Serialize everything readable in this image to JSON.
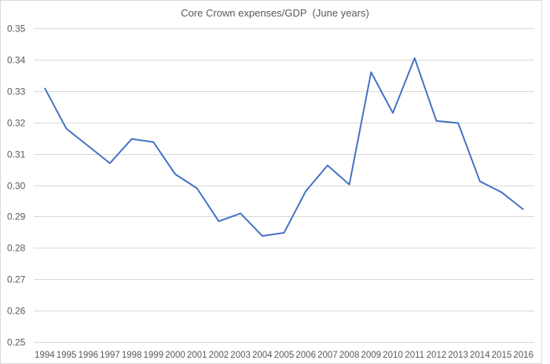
{
  "chart_data": {
    "type": "line",
    "title": "Core Crown expenses/GDP  (June years)",
    "xlabel": "",
    "ylabel": "",
    "ylim": [
      0.25,
      0.35
    ],
    "yticks": [
      "0.35",
      "0.34",
      "0.33",
      "0.32",
      "0.31",
      "0.30",
      "0.29",
      "0.28",
      "0.27",
      "0.26",
      "0.25"
    ],
    "grid": true,
    "legend": "none",
    "categories": [
      "1994",
      "1995",
      "1996",
      "1997",
      "1998",
      "1999",
      "2000",
      "2001",
      "2002",
      "2003",
      "2004",
      "2005",
      "2006",
      "2007",
      "2008",
      "2009",
      "2010",
      "2011",
      "2012",
      "2013",
      "2014",
      "2015",
      "2016"
    ],
    "series": [
      {
        "name": "Core Crown expenses/GDP",
        "color": "#4472c4",
        "values": [
          0.331,
          0.318,
          0.3125,
          0.307,
          0.3147,
          0.3137,
          0.3035,
          0.299,
          0.2885,
          0.291,
          0.2838,
          0.2848,
          0.2981,
          0.3063,
          0.3002,
          0.336,
          0.323,
          0.3405,
          0.3205,
          0.3198,
          0.3012,
          0.2977,
          0.2922
        ]
      }
    ]
  },
  "colors": {
    "line": "#4472c4",
    "grid": "#d9d9d9",
    "text": "#595959"
  }
}
